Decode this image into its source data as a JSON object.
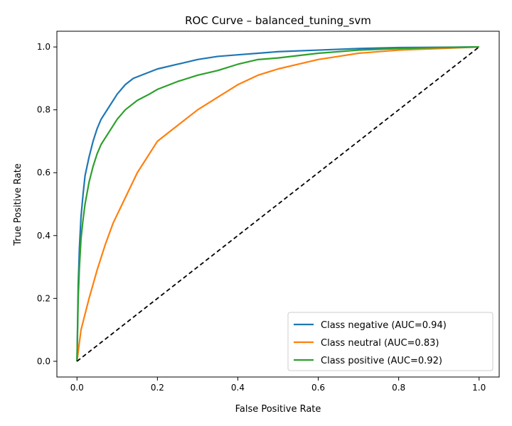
{
  "chart_data": {
    "type": "line",
    "title": "ROC Curve – balanced_tuning_svm",
    "xlabel": "False Positive Rate",
    "ylabel": "True Positive Rate",
    "xlim": [
      -0.05,
      1.05
    ],
    "ylim": [
      -0.05,
      1.05
    ],
    "xticks": [
      "0.0",
      "0.2",
      "0.4",
      "0.6",
      "0.8",
      "1.0"
    ],
    "yticks": [
      "0.0",
      "0.2",
      "0.4",
      "0.6",
      "0.8",
      "1.0"
    ],
    "grid": false,
    "legend_position": "lower-right",
    "series": [
      {
        "name": "Class negative (AUC=0.94)",
        "color": "#1f77b4",
        "x": [
          0.0,
          0.003,
          0.006,
          0.01,
          0.015,
          0.02,
          0.03,
          0.04,
          0.05,
          0.06,
          0.08,
          0.1,
          0.12,
          0.14,
          0.17,
          0.2,
          0.25,
          0.3,
          0.35,
          0.4,
          0.45,
          0.5,
          0.6,
          0.7,
          0.8,
          0.9,
          1.0
        ],
        "y": [
          0.0,
          0.24,
          0.36,
          0.46,
          0.53,
          0.59,
          0.65,
          0.7,
          0.74,
          0.77,
          0.81,
          0.85,
          0.88,
          0.9,
          0.915,
          0.93,
          0.945,
          0.96,
          0.97,
          0.975,
          0.98,
          0.985,
          0.99,
          0.995,
          0.998,
          0.999,
          1.0
        ]
      },
      {
        "name": "Class neutral (AUC=0.83)",
        "color": "#ff7f0e",
        "x": [
          0.0,
          0.01,
          0.02,
          0.03,
          0.05,
          0.07,
          0.09,
          0.12,
          0.15,
          0.18,
          0.2,
          0.23,
          0.26,
          0.3,
          0.35,
          0.4,
          0.45,
          0.5,
          0.55,
          0.6,
          0.65,
          0.7,
          0.8,
          0.9,
          1.0
        ],
        "y": [
          0.0,
          0.1,
          0.15,
          0.2,
          0.29,
          0.37,
          0.44,
          0.52,
          0.6,
          0.66,
          0.7,
          0.73,
          0.76,
          0.8,
          0.84,
          0.88,
          0.91,
          0.93,
          0.945,
          0.96,
          0.97,
          0.98,
          0.99,
          0.995,
          1.0
        ]
      },
      {
        "name": "Class positive (AUC=0.92)",
        "color": "#2ca02c",
        "x": [
          0.0,
          0.003,
          0.006,
          0.01,
          0.015,
          0.02,
          0.03,
          0.04,
          0.05,
          0.06,
          0.08,
          0.1,
          0.12,
          0.15,
          0.18,
          0.2,
          0.25,
          0.3,
          0.35,
          0.4,
          0.45,
          0.5,
          0.6,
          0.7,
          0.8,
          0.9,
          1.0
        ],
        "y": [
          0.0,
          0.2,
          0.3,
          0.39,
          0.45,
          0.5,
          0.57,
          0.62,
          0.66,
          0.69,
          0.73,
          0.77,
          0.8,
          0.83,
          0.85,
          0.865,
          0.89,
          0.91,
          0.925,
          0.945,
          0.96,
          0.965,
          0.98,
          0.99,
          0.995,
          0.998,
          1.0
        ]
      }
    ],
    "reference_line": {
      "x": [
        0,
        1
      ],
      "y": [
        0,
        1
      ],
      "color": "#000000",
      "style": "dashed"
    }
  }
}
